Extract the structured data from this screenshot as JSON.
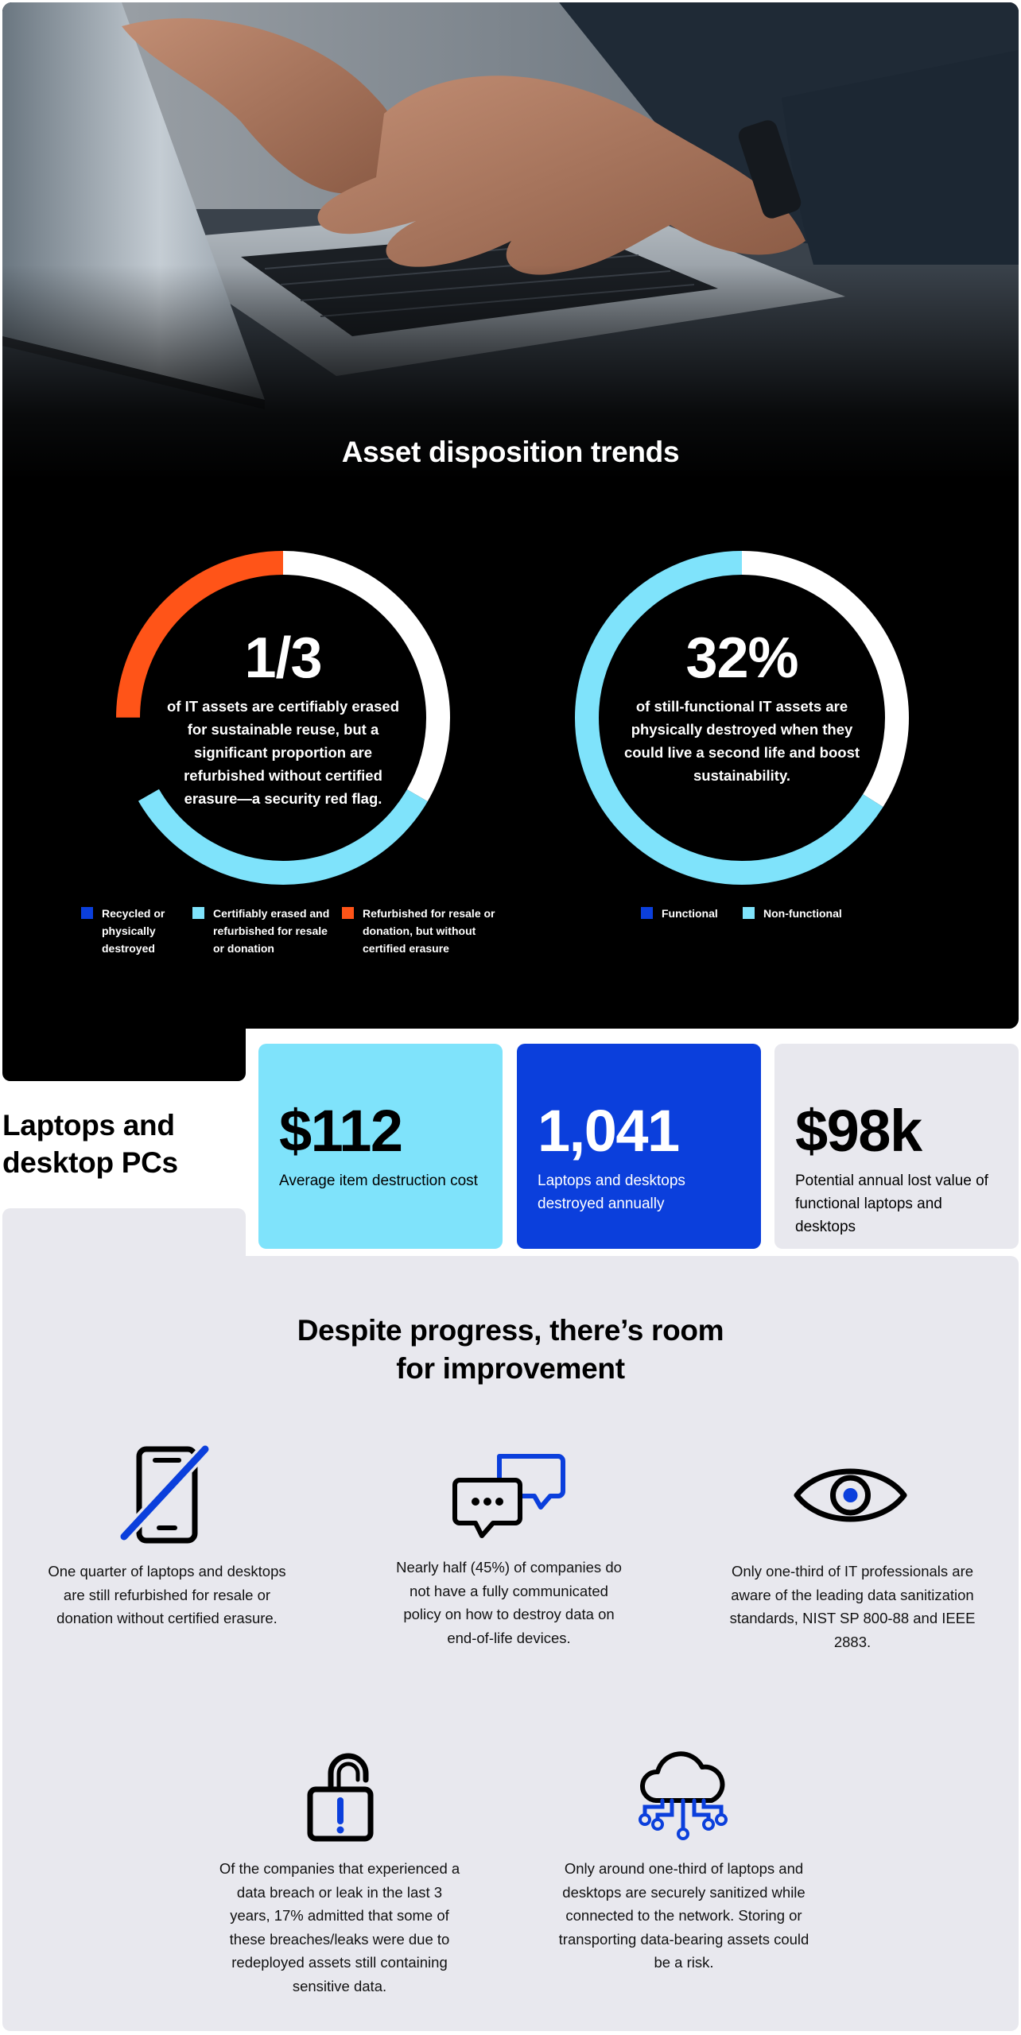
{
  "colors": {
    "recycled": "#0b3fdc",
    "certified": "#7fe3fb",
    "refurbished": "#ff5418",
    "white": "#ffffff",
    "functional": "#0b3fdc",
    "non_functional": "#7fe3fb"
  },
  "hero": {
    "image": "hands typing on laptop keyboard"
  },
  "section_title": "Asset disposition trends",
  "donut_left": {
    "big": "1/3",
    "desc": "of IT assets are certifiably erased for sustainable reuse, but a significant proportion are refurbished without certified erasure—a security red flag.",
    "legend": [
      "Recycled or physically destroyed",
      "Certifiably erased and refurbished for resale or donation",
      "Refurbished for resale or donation, but without certified erasure"
    ]
  },
  "donut_right": {
    "big": "32%",
    "desc": "of still-functional IT assets are physically destroyed when they could live a second life and boost sustainability.",
    "legend": [
      "Functional",
      "Non-functional"
    ]
  },
  "side_title": "Laptops and desktop PCs",
  "stats": [
    {
      "value": "$112",
      "label": "Average item destruction cost"
    },
    {
      "value": "1,041",
      "label": "Laptops and desktops destroyed annually"
    },
    {
      "value": "$98k",
      "label": "Potential annual lost value of functional laptops and desktops"
    }
  ],
  "improvement": {
    "title": "Despite progress, there’s room for improvement",
    "items": [
      {
        "icon": "phone-slash-icon",
        "text": "One quarter of laptops and desktops are still refurbished for resale or donation without certified erasure."
      },
      {
        "icon": "chat-bubbles-icon",
        "text": "Nearly half (45%) of companies do not have a fully communicated policy on how to destroy data on end-of-life devices."
      },
      {
        "icon": "eye-icon",
        "text": "Only one-third of IT professionals are aware of the leading data sanitization standards, NIST SP 800-88 and IEEE 2883."
      },
      {
        "icon": "unlocked-padlock-icon",
        "text": "Of the companies that experienced a data breach or leak in the last 3 years, 17% admitted that some of these breaches/leaks were due to redeployed assets still containing sensitive data."
      },
      {
        "icon": "cloud-network-icon",
        "text": "Only around one-third of laptops and desktops are securely sanitized while connected to the network. Storing or transporting data-bearing assets could be a risk."
      }
    ]
  }
}
